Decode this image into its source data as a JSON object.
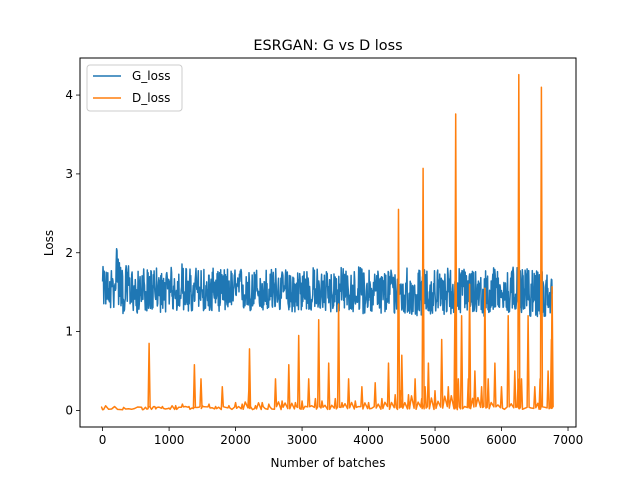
{
  "chart_data": {
    "type": "line",
    "title": "ESRGAN: G vs D loss",
    "xlabel": "Number of batches",
    "ylabel": "Loss",
    "xlim": [
      -340,
      7120
    ],
    "ylim": [
      -0.21,
      4.47
    ],
    "xticks": [
      0,
      1000,
      2000,
      3000,
      4000,
      5000,
      6000,
      7000
    ],
    "yticks": [
      0,
      1,
      2,
      3,
      4
    ],
    "x_tick_labels": [
      "0",
      "1000",
      "2000",
      "3000",
      "4000",
      "5000",
      "6000",
      "7000"
    ],
    "y_tick_labels": [
      "0",
      "1",
      "2",
      "3",
      "4"
    ],
    "legend_position": "top-left",
    "grid": false,
    "series": [
      {
        "name": "G_loss",
        "color": "#1f77b4",
        "x": [
          0,
          100,
          200,
          210,
          300,
          400,
          500,
          600,
          700,
          800,
          900,
          1000,
          1100,
          1200,
          1300,
          1400,
          1500,
          1600,
          1700,
          1800,
          1900,
          2000,
          2100,
          2200,
          2300,
          2400,
          2500,
          2600,
          2700,
          2800,
          2900,
          3000,
          3100,
          3200,
          3300,
          3400,
          3500,
          3600,
          3700,
          3800,
          3900,
          4000,
          4100,
          4200,
          4300,
          4400,
          4500,
          4600,
          4700,
          4800,
          4900,
          5000,
          5100,
          5200,
          5300,
          5400,
          5500,
          5600,
          5700,
          5800,
          5900,
          6000,
          6100,
          6200,
          6300,
          6400,
          6500,
          6600,
          6700,
          6760
        ],
        "values": [
          1.55,
          1.49,
          1.62,
          2.05,
          1.46,
          1.55,
          1.42,
          1.52,
          1.47,
          1.53,
          1.44,
          1.52,
          1.48,
          1.55,
          1.46,
          1.5,
          1.52,
          1.45,
          1.53,
          1.47,
          1.51,
          1.49,
          1.53,
          1.46,
          1.5,
          1.52,
          1.47,
          1.51,
          1.48,
          1.53,
          1.46,
          1.51,
          1.49,
          1.52,
          1.45,
          1.5,
          1.48,
          1.52,
          1.46,
          1.49,
          1.51,
          1.47,
          1.52,
          1.45,
          1.5,
          1.46,
          1.48,
          1.52,
          1.44,
          1.49,
          1.46,
          1.51,
          1.45,
          1.52,
          1.47,
          1.49,
          1.46,
          1.5,
          1.44,
          1.49,
          1.51,
          1.45,
          1.48,
          1.5,
          1.46,
          1.49,
          1.43,
          1.47,
          1.45,
          1.48
        ],
        "band_low": [
          1.32,
          1.24,
          1.27,
          1.3,
          1.18,
          1.25,
          1.2,
          1.24,
          1.22,
          1.26,
          1.2,
          1.24,
          1.22,
          1.25,
          1.18,
          1.22,
          1.24,
          1.2,
          1.24,
          1.22,
          1.24,
          1.2,
          1.24,
          1.22,
          1.24,
          1.22,
          1.2,
          1.24,
          1.22,
          1.24,
          1.2,
          1.24,
          1.22,
          1.24,
          1.2,
          1.22,
          1.2,
          1.22,
          1.2,
          1.22,
          1.2,
          1.18,
          1.22,
          1.18,
          1.2,
          1.18,
          1.18,
          1.14,
          1.16,
          1.18,
          1.18,
          1.2,
          1.16,
          1.2,
          1.18,
          1.2,
          1.18,
          1.2,
          1.16,
          1.18,
          1.2,
          1.18,
          1.18,
          1.2,
          1.18,
          1.16,
          1.14,
          1.16,
          1.14,
          1.18
        ],
        "band_high": [
          1.86,
          1.8,
          1.95,
          2.05,
          1.84,
          1.9,
          1.78,
          1.86,
          1.8,
          1.88,
          1.78,
          1.86,
          1.84,
          1.92,
          1.84,
          1.86,
          1.88,
          1.8,
          1.86,
          1.82,
          1.86,
          1.82,
          1.86,
          1.8,
          1.84,
          1.88,
          1.82,
          1.86,
          1.8,
          1.86,
          1.8,
          1.88,
          1.84,
          1.86,
          1.8,
          1.84,
          1.82,
          1.86,
          1.8,
          1.84,
          1.88,
          1.82,
          1.86,
          1.8,
          1.86,
          1.82,
          1.84,
          1.9,
          1.78,
          1.84,
          1.82,
          1.86,
          1.8,
          1.86,
          1.84,
          1.86,
          1.82,
          1.86,
          1.8,
          1.84,
          1.86,
          1.8,
          1.84,
          1.86,
          1.82,
          1.84,
          1.8,
          1.82,
          1.78,
          1.74
        ]
      },
      {
        "name": "D_loss",
        "color": "#ff7f0e",
        "x": [
          0,
          300,
          600,
          680,
          700,
          750,
          800,
          900,
          1000,
          1100,
          1200,
          1300,
          1380,
          1400,
          1480,
          1500,
          1600,
          1700,
          1800,
          1900,
          2000,
          2100,
          2200,
          2210,
          2300,
          2400,
          2500,
          2600,
          2700,
          2800,
          2900,
          2950,
          3000,
          3100,
          3200,
          3250,
          3300,
          3400,
          3500,
          3550,
          3600,
          3700,
          3800,
          3900,
          4000,
          4100,
          4200,
          4300,
          4400,
          4450,
          4480,
          4500,
          4600,
          4700,
          4800,
          4820,
          4850,
          4900,
          5000,
          5100,
          5200,
          5300,
          5310,
          5350,
          5400,
          5500,
          5520,
          5600,
          5700,
          5750,
          5800,
          5900,
          6000,
          6100,
          6200,
          6250,
          6260,
          6300,
          6400,
          6500,
          6580,
          6600,
          6700,
          6750,
          6760
        ],
        "values": [
          0.01,
          0.01,
          0.01,
          0.02,
          0.85,
          0.03,
          0.02,
          0.05,
          0.03,
          0.06,
          0.08,
          0.05,
          0.58,
          0.04,
          0.4,
          0.06,
          0.08,
          0.05,
          0.3,
          0.06,
          0.1,
          0.08,
          0.28,
          0.78,
          0.06,
          0.1,
          0.08,
          0.4,
          0.12,
          0.58,
          0.1,
          0.95,
          0.12,
          0.4,
          0.15,
          1.15,
          0.12,
          0.6,
          0.15,
          1.35,
          0.1,
          0.4,
          0.12,
          0.3,
          0.1,
          0.35,
          0.15,
          0.6,
          0.2,
          2.55,
          0.25,
          0.7,
          0.2,
          0.4,
          0.15,
          3.07,
          0.3,
          0.6,
          0.25,
          0.9,
          0.3,
          1.4,
          3.76,
          0.4,
          1.2,
          0.4,
          1.6,
          0.5,
          0.3,
          1.55,
          0.4,
          0.6,
          0.3,
          1.2,
          0.5,
          0.4,
          4.26,
          0.4,
          1.2,
          0.3,
          0.4,
          4.1,
          0.5,
          0.9,
          1.57
        ],
        "baseline": 0.01
      }
    ]
  }
}
